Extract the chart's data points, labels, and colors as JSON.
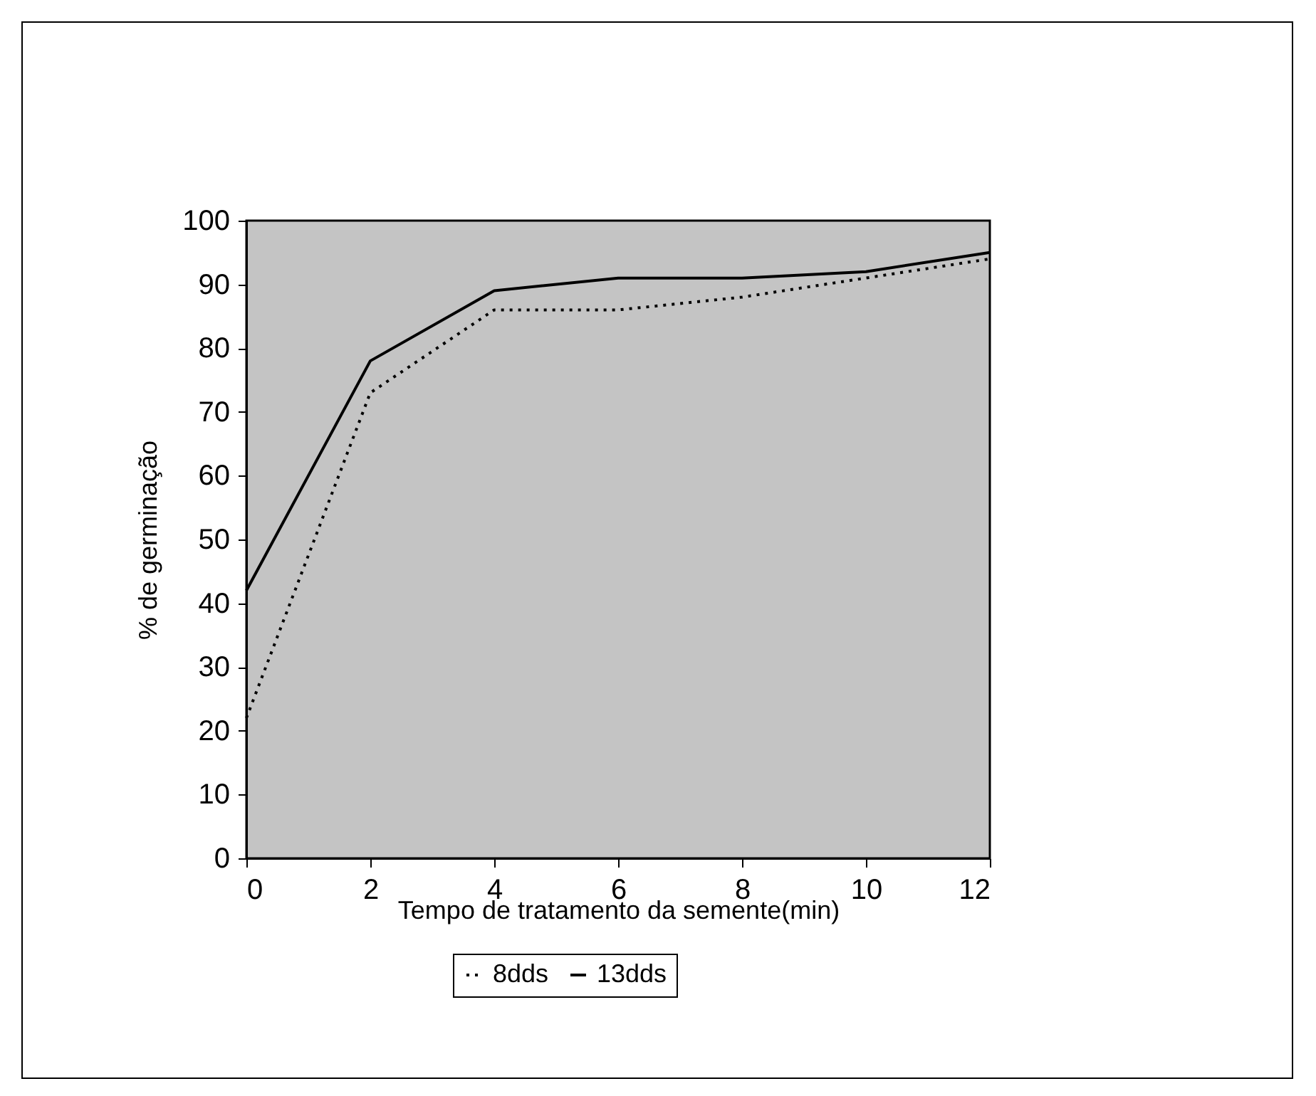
{
  "chart_data": {
    "type": "line",
    "xlabel": "Tempo de tratamento da semente(min)",
    "ylabel": "% de germinação",
    "x": [
      0,
      2,
      4,
      6,
      8,
      10,
      12
    ],
    "series": [
      {
        "name": "8dds",
        "color": "#000000",
        "line_style": "dotted",
        "values": [
          22,
          73,
          86,
          86,
          88,
          91,
          94
        ]
      },
      {
        "name": "13dds",
        "color": "#000000",
        "line_style": "solid",
        "values": [
          42,
          78,
          89,
          91,
          91,
          92,
          95
        ]
      }
    ],
    "xlim": [
      0,
      12
    ],
    "xticks": [
      0,
      2,
      4,
      6,
      8,
      10,
      12
    ],
    "ylim": [
      0,
      100
    ],
    "yticks": [
      0,
      10,
      20,
      30,
      40,
      50,
      60,
      70,
      80,
      90,
      100
    ],
    "grid": false,
    "legend": "bottom",
    "marker": "none"
  }
}
